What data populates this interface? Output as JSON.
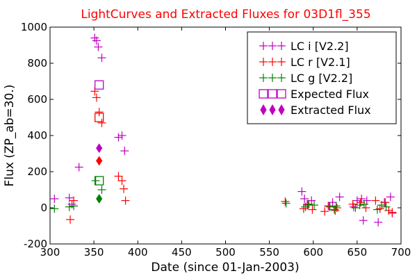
{
  "chart_data": {
    "type": "scatter",
    "title": "LightCurves and Extracted Fluxes for 03D1fl_355",
    "xlabel": "Date (since 01-Jan-2003)",
    "ylabel": "Flux (ZP_ab=30.)",
    "xlim": [
      300,
      700
    ],
    "ylim": [
      -200,
      1000
    ],
    "x_ticks": [
      "300",
      "350",
      "400",
      "450",
      "500",
      "550",
      "600",
      "650",
      "700"
    ],
    "y_ticks": [
      "-200",
      "0",
      "200",
      "400",
      "600",
      "800",
      "1000"
    ],
    "legend_position": "top-right",
    "colors": {
      "i": "#bf00bf",
      "r": "#ff0000",
      "g": "#008000",
      "title": "#ff0000"
    },
    "series": [
      {
        "name": "LC i [V2.2]",
        "marker": "plus",
        "color": "#bf00bf",
        "points": [
          [
            305,
            50
          ],
          [
            322,
            55
          ],
          [
            325,
            20
          ],
          [
            333,
            225
          ],
          [
            351,
            940
          ],
          [
            353,
            925
          ],
          [
            355,
            890
          ],
          [
            359,
            830
          ],
          [
            378,
            390
          ],
          [
            382,
            400
          ],
          [
            385,
            315
          ],
          [
            587,
            90
          ],
          [
            590,
            50
          ],
          [
            593,
            20
          ],
          [
            598,
            40
          ],
          [
            617,
            10
          ],
          [
            622,
            30
          ],
          [
            630,
            60
          ],
          [
            646,
            5
          ],
          [
            650,
            40
          ],
          [
            655,
            50
          ],
          [
            657,
            -70
          ],
          [
            661,
            40
          ],
          [
            674,
            -80
          ],
          [
            681,
            30
          ],
          [
            688,
            60
          ],
          [
            690,
            -30
          ]
        ]
      },
      {
        "name": "LC r [V2.1]",
        "marker": "plus",
        "color": "#ff0000",
        "points": [
          [
            323,
            -65
          ],
          [
            327,
            40
          ],
          [
            351,
            645
          ],
          [
            353,
            610
          ],
          [
            356,
            530
          ],
          [
            359,
            470
          ],
          [
            378,
            175
          ],
          [
            382,
            150
          ],
          [
            384,
            105
          ],
          [
            386,
            40
          ],
          [
            568,
            35
          ],
          [
            589,
            -5
          ],
          [
            594,
            15
          ],
          [
            599,
            -10
          ],
          [
            613,
            -20
          ],
          [
            618,
            10
          ],
          [
            625,
            -15
          ],
          [
            627,
            0
          ],
          [
            645,
            20
          ],
          [
            654,
            30
          ],
          [
            660,
            0
          ],
          [
            671,
            40
          ],
          [
            676,
            -5
          ],
          [
            682,
            30
          ],
          [
            686,
            -15
          ],
          [
            690,
            -25
          ]
        ]
      },
      {
        "name": "LC g [V2.2]",
        "marker": "plus",
        "color": "#008000",
        "points": [
          [
            305,
            -5
          ],
          [
            322,
            5
          ],
          [
            327,
            10
          ],
          [
            352,
            150
          ],
          [
            359,
            100
          ],
          [
            569,
            25
          ],
          [
            591,
            5
          ],
          [
            595,
            20
          ],
          [
            601,
            15
          ],
          [
            619,
            5
          ],
          [
            624,
            -10
          ],
          [
            626,
            10
          ],
          [
            648,
            0
          ],
          [
            653,
            15
          ],
          [
            658,
            20
          ],
          [
            673,
            -10
          ],
          [
            678,
            15
          ],
          [
            683,
            5
          ]
        ]
      },
      {
        "name": "Expected Flux",
        "marker": "square",
        "color_by_band": true,
        "points": [
          [
            356,
            680,
            "i"
          ],
          [
            356,
            500,
            "r"
          ],
          [
            356,
            150,
            "g"
          ]
        ]
      },
      {
        "name": "Extracted Flux",
        "marker": "diamond",
        "color_by_band": true,
        "points": [
          [
            356,
            330,
            "i"
          ],
          [
            356,
            260,
            "r"
          ],
          [
            356,
            50,
            "g"
          ]
        ]
      }
    ],
    "legend": [
      {
        "label": "LC i [V2.2]",
        "marker": "plus",
        "color": "#bf00bf"
      },
      {
        "label": "LC r [V2.1]",
        "marker": "plus",
        "color": "#ff0000"
      },
      {
        "label": "LC g [V2.2]",
        "marker": "plus",
        "color": "#008000"
      },
      {
        "label": "Expected Flux",
        "marker": "square",
        "color": "#bf00bf"
      },
      {
        "label": "Extracted Flux",
        "marker": "diamond",
        "color": "#bf00bf"
      }
    ]
  }
}
